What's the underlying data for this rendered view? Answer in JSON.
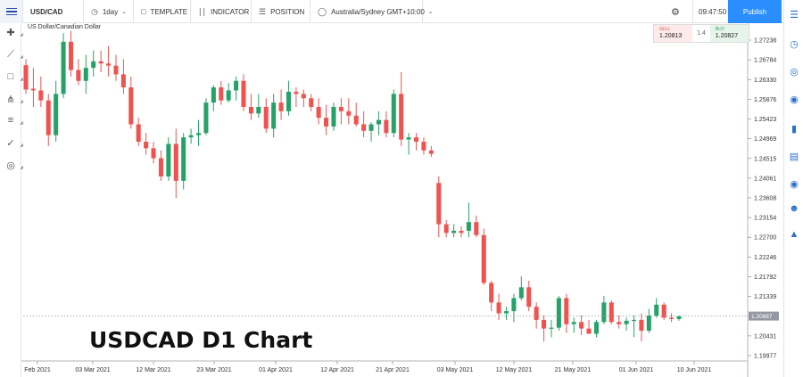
{
  "toolbar": {
    "symbol": "USD/CAD",
    "interval": "1day",
    "template_label": "TEMPLATE",
    "indicator_label": "INDICATOR",
    "position_label": "POSITION",
    "timezone": "Australia/Sydney GMT+10:00",
    "clock": "09:47:50",
    "publish_label": "Publish"
  },
  "chart_title": "US Dollar/Canadian Dollar",
  "quote": {
    "sell_label": "SELL",
    "sell_value": "1.20813",
    "spread": "1.4",
    "buy_label": "BUY",
    "buy_value": "1.20827"
  },
  "overlay_label": "USDCAD D1 Chart",
  "colors": {
    "up": "#26a269",
    "down": "#ef5350",
    "accent": "#2b8efe"
  },
  "left_tools": [
    "crosshair-icon",
    "trendline-icon",
    "rectangle-icon",
    "pitchfork-icon",
    "fib-retracement-icon",
    "brush-icon",
    "marker-icon"
  ],
  "right_tools": [
    "watchlist-icon",
    "alerts-icon",
    "calendar-icon",
    "ideas-icon",
    "bookmark-icon",
    "hotlist-icon",
    "news-icon",
    "chat-icon",
    "notifications-icon"
  ],
  "chart_data": {
    "type": "candlestick",
    "title": "US Dollar/Canadian Dollar",
    "y_ticks": [
      "1.27238",
      "1.26784",
      "1.26330",
      "1.25876",
      "1.25423",
      "1.24969",
      "1.24515",
      "1.24061",
      "1.23608",
      "1.23154",
      "1.22700",
      "1.22246",
      "1.21792",
      "1.21339",
      "1.20885",
      "1.20431",
      "1.19977"
    ],
    "x_ticks": [
      "Feb 2021",
      "03 Mar 2021",
      "12 Mar 2021",
      "23 Mar 2021",
      "01 Apr 2021",
      "12 Apr 2021",
      "21 Apr 2021",
      "03 May 2021",
      "12 May 2021",
      "21 May 2021",
      "01 Jun 2021",
      "10 Jun 2021"
    ],
    "ylim": [
      1.1995,
      1.2745
    ],
    "current_price": "1.20887",
    "candles": [
      [
        1.2666,
        1.268,
        1.26,
        1.261
      ],
      [
        1.2612,
        1.266,
        1.257,
        1.2608
      ],
      [
        1.2608,
        1.264,
        1.257,
        1.2585
      ],
      [
        1.2585,
        1.26,
        1.248,
        1.2505
      ],
      [
        1.2505,
        1.263,
        1.249,
        1.26
      ],
      [
        1.26,
        1.274,
        1.259,
        1.272
      ],
      [
        1.272,
        1.2745,
        1.264,
        1.2655
      ],
      [
        1.2655,
        1.268,
        1.262,
        1.263
      ],
      [
        1.263,
        1.269,
        1.26,
        1.266
      ],
      [
        1.266,
        1.27,
        1.264,
        1.2675
      ],
      [
        1.2675,
        1.27,
        1.265,
        1.267
      ],
      [
        1.267,
        1.271,
        1.264,
        1.2665
      ],
      [
        1.2665,
        1.269,
        1.263,
        1.2645
      ],
      [
        1.2645,
        1.268,
        1.26,
        1.2615
      ],
      [
        1.2615,
        1.264,
        1.252,
        1.253
      ],
      [
        1.253,
        1.2545,
        1.248,
        1.249
      ],
      [
        1.249,
        1.251,
        1.246,
        1.2475
      ],
      [
        1.2475,
        1.249,
        1.244,
        1.2452
      ],
      [
        1.2452,
        1.247,
        1.24,
        1.241
      ],
      [
        1.241,
        1.25,
        1.24,
        1.2485
      ],
      [
        1.2485,
        1.252,
        1.236,
        1.24
      ],
      [
        1.24,
        1.251,
        1.238,
        1.25
      ],
      [
        1.25,
        1.252,
        1.2485,
        1.2505
      ],
      [
        1.2505,
        1.254,
        1.248,
        1.251
      ],
      [
        1.251,
        1.259,
        1.2505,
        1.258
      ],
      [
        1.258,
        1.262,
        1.256,
        1.2615
      ],
      [
        1.2615,
        1.263,
        1.2575,
        1.2585
      ],
      [
        1.2585,
        1.2625,
        1.258,
        1.2608
      ],
      [
        1.2608,
        1.264,
        1.2585,
        1.263
      ],
      [
        1.263,
        1.2645,
        1.256,
        1.257
      ],
      [
        1.257,
        1.26,
        1.254,
        1.2555
      ],
      [
        1.2555,
        1.26,
        1.2545,
        1.257
      ],
      [
        1.257,
        1.259,
        1.251,
        1.252
      ],
      [
        1.252,
        1.26,
        1.25,
        1.258
      ],
      [
        1.258,
        1.261,
        1.254,
        1.256
      ],
      [
        1.256,
        1.263,
        1.255,
        1.2605
      ],
      [
        1.2605,
        1.2615,
        1.257,
        1.26
      ],
      [
        1.26,
        1.261,
        1.257,
        1.259
      ],
      [
        1.259,
        1.26,
        1.256,
        1.257
      ],
      [
        1.257,
        1.259,
        1.253,
        1.2545
      ],
      [
        1.2545,
        1.2575,
        1.2505,
        1.2525
      ],
      [
        1.2525,
        1.258,
        1.2515,
        1.257
      ],
      [
        1.257,
        1.259,
        1.253,
        1.256
      ],
      [
        1.256,
        1.259,
        1.253,
        1.255
      ],
      [
        1.255,
        1.258,
        1.2525,
        1.253
      ],
      [
        1.253,
        1.256,
        1.25,
        1.2515
      ],
      [
        1.2515,
        1.2535,
        1.249,
        1.253
      ],
      [
        1.253,
        1.256,
        1.2505,
        1.254
      ],
      [
        1.254,
        1.256,
        1.25,
        1.251
      ],
      [
        1.251,
        1.261,
        1.25,
        1.26
      ],
      [
        1.26,
        1.265,
        1.248,
        1.2495
      ],
      [
        1.2495,
        1.251,
        1.246,
        1.25
      ],
      [
        1.25,
        1.251,
        1.247,
        1.249
      ],
      [
        1.249,
        1.25,
        1.246,
        1.247
      ],
      [
        1.247,
        1.248,
        1.2455,
        1.2462
      ],
      [
        1.2395,
        1.241,
        1.227,
        1.23
      ],
      [
        1.23,
        1.231,
        1.227,
        1.228
      ],
      [
        1.228,
        1.23,
        1.227,
        1.2285
      ],
      [
        1.2285,
        1.2295,
        1.227,
        1.228
      ],
      [
        1.2285,
        1.235,
        1.227,
        1.2305
      ],
      [
        1.2305,
        1.232,
        1.227,
        1.2275
      ],
      [
        1.2275,
        1.229,
        1.216,
        1.2165
      ],
      [
        1.2165,
        1.217,
        1.21,
        1.212
      ],
      [
        1.212,
        1.214,
        1.208,
        1.2095
      ],
      [
        1.2095,
        1.211,
        1.208,
        1.21
      ],
      [
        1.21,
        1.214,
        1.2075,
        1.213
      ],
      [
        1.213,
        1.218,
        1.2125,
        1.2155
      ],
      [
        1.2155,
        1.217,
        1.21,
        1.211
      ],
      [
        1.211,
        1.212,
        1.206,
        1.208
      ],
      [
        1.208,
        1.209,
        1.203,
        1.206
      ],
      [
        1.206,
        1.208,
        1.204,
        1.2062
      ],
      [
        1.2062,
        1.2135,
        1.2055,
        1.213
      ],
      [
        1.213,
        1.214,
        1.205,
        1.207
      ],
      [
        1.207,
        1.2085,
        1.205,
        1.2075
      ],
      [
        1.2075,
        1.209,
        1.2045,
        1.206
      ],
      [
        1.206,
        1.208,
        1.205,
        1.2048
      ],
      [
        1.2048,
        1.208,
        1.204,
        1.2075
      ],
      [
        1.2075,
        1.2135,
        1.207,
        1.212
      ],
      [
        1.212,
        1.2125,
        1.207,
        1.2075
      ],
      [
        1.2075,
        1.209,
        1.206,
        1.207
      ],
      [
        1.207,
        1.2085,
        1.2055,
        1.2078
      ],
      [
        1.2078,
        1.209,
        1.204,
        1.208
      ],
      [
        1.208,
        1.2095,
        1.203,
        1.2055
      ],
      [
        1.2055,
        1.2105,
        1.205,
        1.209
      ],
      [
        1.209,
        1.213,
        1.2085,
        1.2115
      ],
      [
        1.2115,
        1.212,
        1.208,
        1.2085
      ],
      [
        1.2085,
        1.2095,
        1.2075,
        1.2082
      ],
      [
        1.2082,
        1.209,
        1.2078,
        1.2088
      ]
    ]
  }
}
